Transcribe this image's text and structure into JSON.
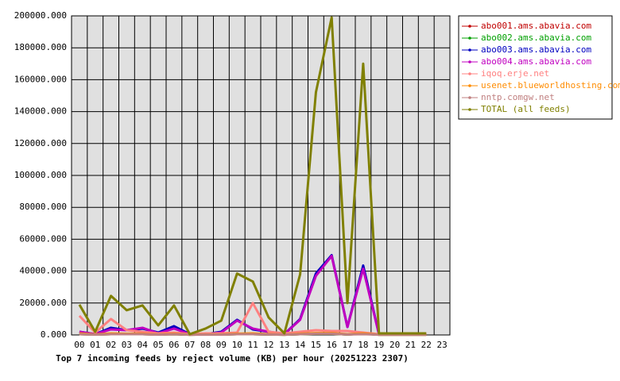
{
  "chart_data": {
    "type": "line",
    "title": "Top 7 incoming feeds by reject volume (KB) per hour (20251223 2307)",
    "categories": [
      "00",
      "01",
      "02",
      "03",
      "04",
      "05",
      "06",
      "07",
      "08",
      "09",
      "10",
      "11",
      "12",
      "13",
      "14",
      "15",
      "16",
      "17",
      "18",
      "19",
      "20",
      "21",
      "22",
      "23"
    ],
    "ylim": [
      0,
      200000
    ],
    "yticks": [
      {
        "value": 0,
        "label": "0.000"
      },
      {
        "value": 20000,
        "label": "20000.000"
      },
      {
        "value": 40000,
        "label": "40000.000"
      },
      {
        "value": 60000,
        "label": "60000.000"
      },
      {
        "value": 80000,
        "label": "80000.000"
      },
      {
        "value": 100000,
        "label": "100000.000"
      },
      {
        "value": 120000,
        "label": "120000.000"
      },
      {
        "value": 140000,
        "label": "140000.000"
      },
      {
        "value": 160000,
        "label": "160000.000"
      },
      {
        "value": 180000,
        "label": "180000.000"
      },
      {
        "value": 200000,
        "label": "200000.000"
      }
    ],
    "grid": true,
    "legend": "right",
    "series": [
      {
        "name": "abo001.ams.abavia.com",
        "color": "#c00000",
        "values": [
          500,
          300,
          500,
          500,
          500,
          300,
          500,
          200,
          300,
          300,
          500,
          500,
          300,
          200,
          500,
          800,
          800,
          300,
          800,
          200,
          200,
          200,
          200,
          null
        ]
      },
      {
        "name": "abo002.ams.abavia.com",
        "color": "#00a000",
        "values": [
          500,
          300,
          500,
          500,
          500,
          300,
          500,
          200,
          300,
          300,
          500,
          500,
          300,
          200,
          500,
          800,
          800,
          300,
          800,
          200,
          200,
          200,
          200,
          null
        ]
      },
      {
        "name": "abo003.ams.abavia.com",
        "color": "#0000c0",
        "values": [
          2000,
          500,
          4500,
          3000,
          4000,
          1500,
          5500,
          500,
          500,
          2000,
          9500,
          3500,
          2000,
          500,
          10000,
          38500,
          50000,
          5000,
          43500,
          500,
          500,
          500,
          500,
          null
        ]
      },
      {
        "name": "abo004.ams.abavia.com",
        "color": "#c000c0",
        "values": [
          2000,
          500,
          3500,
          3000,
          4500,
          1000,
          4000,
          500,
          500,
          1500,
          9000,
          4000,
          2000,
          500,
          9500,
          37000,
          49500,
          5000,
          41500,
          500,
          500,
          500,
          500,
          null
        ]
      },
      {
        "name": "iqoq.erje.net",
        "color": "#ff8080",
        "values": [
          12000,
          1500,
          10000,
          3000,
          2000,
          1000,
          1500,
          500,
          1000,
          1000,
          1500,
          20000,
          2000,
          1000,
          2000,
          3000,
          2500,
          2500,
          1500,
          500,
          500,
          500,
          500,
          null
        ]
      },
      {
        "name": "usenet.blueworldhosting.com",
        "color": "#ff8c00",
        "values": [
          1000,
          300,
          1000,
          800,
          800,
          300,
          800,
          200,
          300,
          300,
          800,
          1000,
          500,
          200,
          800,
          1200,
          1200,
          500,
          1000,
          200,
          200,
          200,
          200,
          null
        ]
      },
      {
        "name": "nntp.comgw.net",
        "color": "#c08080",
        "values": [
          500,
          200,
          500,
          500,
          500,
          200,
          500,
          200,
          200,
          200,
          500,
          500,
          300,
          200,
          500,
          800,
          800,
          300,
          500,
          200,
          200,
          200,
          200,
          null
        ]
      },
      {
        "name": "TOTAL (all feeds)",
        "color": "#808000",
        "values": [
          19000,
          2000,
          24500,
          15500,
          18500,
          6000,
          18500,
          500,
          4000,
          9000,
          38500,
          33500,
          11000,
          1000,
          38000,
          152000,
          199000,
          20000,
          170000,
          1000,
          1000,
          1000,
          1000,
          null
        ]
      }
    ]
  }
}
